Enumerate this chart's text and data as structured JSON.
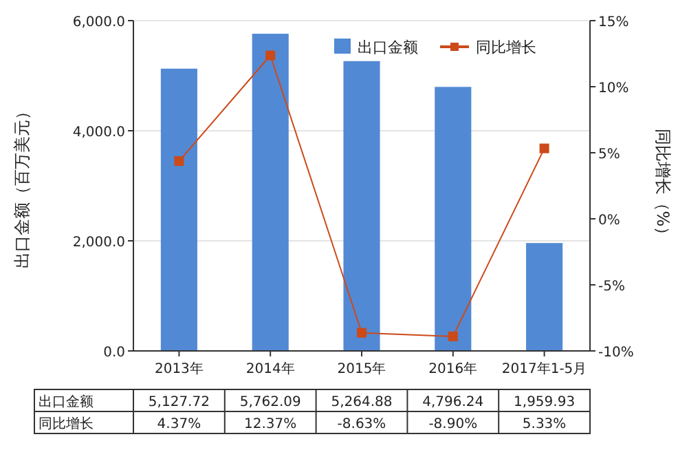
{
  "chart_data": {
    "type": "bar",
    "ylabel": "出口金额（百万美元）",
    "y2label": "同比增长（%）",
    "categories": [
      "2013年",
      "2014年",
      "2015年",
      "2016年",
      "2017年1-5月"
    ],
    "series": [
      {
        "name": "出口金额",
        "color": "#5289d4",
        "values": [
          5127.72,
          5762.09,
          5264.88,
          4796.24,
          1959.93
        ],
        "value_labels": [
          "5,127.72",
          "5,762.09",
          "5,264.88",
          "4,796.24",
          "1,959.93"
        ]
      },
      {
        "name": "同比增长",
        "type": "line",
        "axis": "y2",
        "color": "#cc4a1a",
        "marker": "square",
        "values": [
          4.37,
          12.37,
          -8.63,
          -8.9,
          5.33
        ],
        "value_labels": [
          "4.37%",
          "12.37%",
          "-8.63%",
          "-8.90%",
          "5.33%"
        ]
      }
    ],
    "ylim": [
      0,
      6000
    ],
    "yticks": [
      {
        "value": 0,
        "label": "0.0"
      },
      {
        "value": 2000,
        "label": "2,000.0"
      },
      {
        "value": 4000,
        "label": "4,000.0"
      },
      {
        "value": 6000,
        "label": "6,000.0"
      }
    ],
    "y2lim": [
      -10,
      15
    ],
    "y2ticks": [
      {
        "value": -10,
        "label": "-10%"
      },
      {
        "value": -5,
        "label": "-5%"
      },
      {
        "value": 0,
        "label": "0%"
      },
      {
        "value": 5,
        "label": "5%"
      },
      {
        "value": 10,
        "label": "10%"
      },
      {
        "value": 15,
        "label": "15%"
      }
    ],
    "grid": "y",
    "legend": "top right"
  }
}
